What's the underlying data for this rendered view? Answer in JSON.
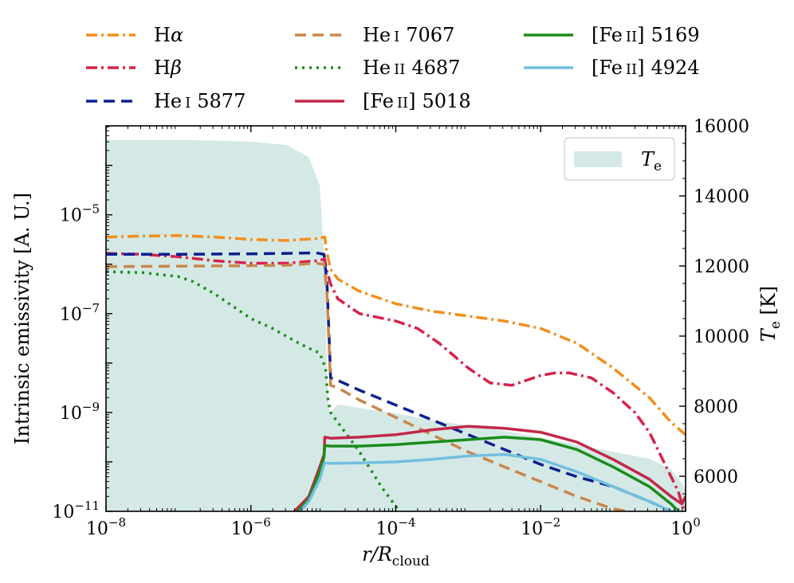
{
  "chart_data": {
    "type": "line",
    "xscale": "log",
    "yscale": "log",
    "xlabel": "r/R_cloud",
    "xlabel_main": "r/R",
    "xlabel_sub": "cloud",
    "ylabel": "Intrinsic emissivity [A. U.]",
    "y2label": "T_e [K]",
    "y2label_main": "T",
    "y2label_sub": "e",
    "y2label_unit": " [K]",
    "xlim_log10": [
      -8,
      0
    ],
    "ylim_log10": [
      -11,
      -3.2
    ],
    "y2lim": [
      5000,
      16000
    ],
    "x_ticks_log10": [
      -8,
      -6,
      -4,
      -2,
      0
    ],
    "x_tick_labels": [
      "10",
      "10",
      "10",
      "10",
      "10"
    ],
    "x_tick_exponents": [
      "−8",
      "−6",
      "−4",
      "−2",
      "0"
    ],
    "y_ticks_log10": [
      -11,
      -9,
      -7,
      -5
    ],
    "y_tick_labels": [
      "10",
      "10",
      "10",
      "10"
    ],
    "y_tick_exponents": [
      "−11",
      "−9",
      "−7",
      "−5"
    ],
    "y2_ticks": [
      6000,
      8000,
      10000,
      12000,
      14000,
      16000
    ],
    "y2_tick_labels": [
      "6000",
      "8000",
      "10000",
      "12000",
      "14000",
      "16000"
    ],
    "shade_legend": {
      "main": "T",
      "sub": "e"
    },
    "temperature_profile": {
      "name": "T_e",
      "color": "#d4e9e6",
      "x_log10": [
        -8,
        -7.5,
        -7,
        -6.5,
        -6,
        -5.5,
        -5.2,
        -5.05,
        -4.98,
        -4.95,
        -4.92,
        -4.8,
        -4.5,
        -4,
        -3.5,
        -3,
        -2.5,
        -2,
        -1.5,
        -1,
        -0.5,
        -0.2,
        -0.05,
        0
      ],
      "T": [
        15600,
        15600,
        15600,
        15580,
        15550,
        15450,
        15100,
        14300,
        12000,
        9000,
        7800,
        8050,
        7950,
        7800,
        7600,
        7450,
        7300,
        7100,
        6900,
        6700,
        6500,
        6200,
        5800,
        5600
      ]
    },
    "series": [
      {
        "name": "Hα",
        "label_main": "H",
        "label_greek": "α",
        "label_ion": "",
        "label_wave": "",
        "color": "#f28e1c",
        "dash": "14 5 3 5",
        "width": 3.5,
        "x_log10": [
          -8,
          -7.5,
          -7,
          -6.5,
          -6,
          -5.5,
          -5.1,
          -4.98,
          -4.96,
          -4.9,
          -4.8,
          -4.5,
          -4,
          -3.5,
          -3,
          -2.5,
          -2,
          -1.5,
          -1,
          -0.5,
          -0.2,
          0
        ],
        "y_log10": [
          -5.45,
          -5.43,
          -5.42,
          -5.45,
          -5.5,
          -5.52,
          -5.48,
          -5.45,
          -5.7,
          -6.1,
          -6.3,
          -6.55,
          -6.8,
          -6.95,
          -7.05,
          -7.15,
          -7.3,
          -7.6,
          -8.1,
          -8.7,
          -9.2,
          -9.45
        ]
      },
      {
        "name": "Hβ",
        "label_main": "H",
        "label_greek": "β",
        "label_ion": "",
        "label_wave": "",
        "color": "#d6224a",
        "dash": "14 5 3 5",
        "width": 3.5,
        "x_log10": [
          -8,
          -7.5,
          -7,
          -6.5,
          -6,
          -5.5,
          -5.1,
          -4.98,
          -4.96,
          -4.9,
          -4.8,
          -4.5,
          -4,
          -3.7,
          -3.4,
          -3,
          -2.7,
          -2.4,
          -2.2,
          -2,
          -1.8,
          -1.6,
          -1.3,
          -1,
          -0.7,
          -0.5,
          -0.3,
          -0.1,
          0
        ],
        "y_log10": [
          -5.78,
          -5.8,
          -5.85,
          -5.93,
          -5.98,
          -5.98,
          -5.93,
          -5.9,
          -6.1,
          -6.4,
          -6.7,
          -7.0,
          -7.15,
          -7.3,
          -7.6,
          -8.1,
          -8.4,
          -8.45,
          -8.35,
          -8.25,
          -8.2,
          -8.2,
          -8.3,
          -8.6,
          -9.0,
          -9.4,
          -10.0,
          -10.6,
          -11.1
        ]
      },
      {
        "name": "He I 5877",
        "label_main": "He",
        "label_greek": "",
        "label_ion": "I",
        "label_wave": "5877",
        "color": "#0a1f8f",
        "dash": "14 8",
        "width": 3.5,
        "x_log10": [
          -8,
          -7,
          -6,
          -5.5,
          -5.1,
          -4.99,
          -4.95,
          -4.92,
          -4.9,
          -4.8,
          -4.5,
          -4,
          -3.5,
          -3,
          -2.5,
          -2,
          -1.5,
          -1,
          -0.5,
          -0.2
        ],
        "y_log10": [
          -5.8,
          -5.8,
          -5.79,
          -5.78,
          -5.77,
          -5.8,
          -6.4,
          -7.5,
          -8.3,
          -8.35,
          -8.55,
          -8.85,
          -9.15,
          -9.45,
          -9.75,
          -10.05,
          -10.3,
          -10.5,
          -10.8,
          -11.0
        ]
      },
      {
        "name": "He I 7067",
        "label_main": "He",
        "label_greek": "",
        "label_ion": "I",
        "label_wave": "7067",
        "color": "#c8874a",
        "dash": "14 8",
        "width": 3.5,
        "x_log10": [
          -8,
          -7,
          -6,
          -5.5,
          -5.1,
          -4.99,
          -4.95,
          -4.92,
          -4.9,
          -4.8,
          -4.5,
          -4,
          -3.5,
          -3,
          -2.5,
          -2,
          -1.5,
          -1,
          -0.8
        ],
        "y_log10": [
          -6.05,
          -6.04,
          -6.03,
          -6.02,
          -5.98,
          -6.0,
          -6.6,
          -7.7,
          -8.45,
          -8.5,
          -8.75,
          -9.1,
          -9.45,
          -9.8,
          -10.1,
          -10.4,
          -10.7,
          -10.95,
          -11.0
        ]
      },
      {
        "name": "He II 4687",
        "label_main": "He",
        "label_greek": "",
        "label_ion": "II",
        "label_wave": "4687",
        "color": "#1a8c1a",
        "dash": "3 6",
        "width": 3.5,
        "x_log10": [
          -8,
          -7.5,
          -7,
          -6.8,
          -6.5,
          -6.2,
          -6,
          -5.7,
          -5.4,
          -5.2,
          -5.05,
          -4.97,
          -4.94,
          -4.9,
          -4.8,
          -4.5,
          -4.2,
          -3.95
        ],
        "y_log10": [
          -6.15,
          -6.17,
          -6.25,
          -6.35,
          -6.6,
          -6.9,
          -7.1,
          -7.3,
          -7.55,
          -7.7,
          -7.8,
          -8.1,
          -8.7,
          -9.0,
          -9.2,
          -9.8,
          -10.5,
          -11.0
        ]
      },
      {
        "name": "[Fe II] 5018",
        "label_main": "[Fe",
        "label_greek": "",
        "label_ion": "II",
        "label_wave": "5018",
        "color": "#c2284a",
        "dash": "",
        "width": 3.5,
        "x_log10": [
          -5.4,
          -5.2,
          -5.05,
          -4.99,
          -4.98,
          -4.9,
          -4.5,
          -4,
          -3.5,
          -3,
          -2.5,
          -2,
          -1.5,
          -1,
          -0.5,
          -0.2,
          -0.05,
          0
        ],
        "y_log10": [
          -11.0,
          -10.7,
          -10.1,
          -9.85,
          -9.5,
          -9.52,
          -9.5,
          -9.45,
          -9.35,
          -9.28,
          -9.32,
          -9.4,
          -9.6,
          -9.95,
          -10.35,
          -10.7,
          -10.85,
          -10.7
        ]
      },
      {
        "name": "[Fe II] 5169",
        "label_main": "[Fe",
        "label_greek": "",
        "label_ion": "II",
        "label_wave": "5169",
        "color": "#1a8c1a",
        "dash": "",
        "width": 3.5,
        "x_log10": [
          -5.35,
          -5.2,
          -5.05,
          -4.99,
          -4.98,
          -4.9,
          -4.5,
          -4,
          -3.5,
          -3,
          -2.5,
          -2,
          -1.5,
          -1,
          -0.5,
          -0.2,
          -0.1
        ],
        "y_log10": [
          -11.0,
          -10.75,
          -10.2,
          -9.9,
          -9.67,
          -9.68,
          -9.68,
          -9.65,
          -9.6,
          -9.55,
          -9.5,
          -9.55,
          -9.75,
          -10.1,
          -10.5,
          -10.85,
          -11.0
        ]
      },
      {
        "name": "[Fe II] 4924",
        "label_main": "[Fe",
        "label_greek": "",
        "label_ion": "II",
        "label_wave": "4924",
        "color": "#72bfdf",
        "dash": "",
        "width": 3.5,
        "x_log10": [
          -5.32,
          -5.2,
          -5.05,
          -4.99,
          -4.98,
          -4.9,
          -4.5,
          -4,
          -3.5,
          -3,
          -2.5,
          -2,
          -1.5,
          -1,
          -0.5,
          -0.2,
          -0.12
        ],
        "y_log10": [
          -11.0,
          -10.8,
          -10.35,
          -10.05,
          -10.02,
          -10.03,
          -10.02,
          -10.0,
          -9.95,
          -9.88,
          -9.85,
          -9.95,
          -10.2,
          -10.5,
          -10.8,
          -11.0,
          -11.0
        ]
      }
    ]
  }
}
